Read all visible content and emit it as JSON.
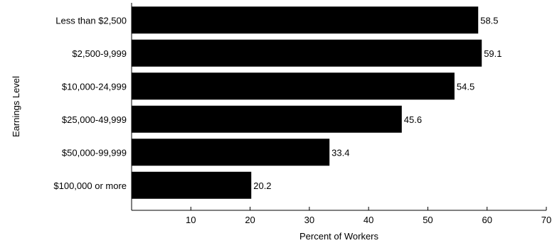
{
  "chart_data": {
    "type": "bar",
    "orientation": "horizontal",
    "title": "",
    "xlabel": "Percent of Workers",
    "ylabel": "Earnings Level",
    "categories": [
      "Less than $2,500",
      "$2,500-9,999",
      "$10,000-24,999",
      "$25,000-49,999",
      "$50,000-99,999",
      "$100,000 or more"
    ],
    "values": [
      58.5,
      59.1,
      54.5,
      45.6,
      33.4,
      20.2
    ],
    "value_labels": [
      "58.5",
      "59.1",
      "54.5",
      "45.6",
      "33.4",
      "20.2"
    ],
    "xlim": [
      0,
      70
    ],
    "xticks": [
      10,
      20,
      30,
      40,
      50,
      60,
      70
    ],
    "bar_color": "#000000",
    "grid": false,
    "legend": "none"
  }
}
